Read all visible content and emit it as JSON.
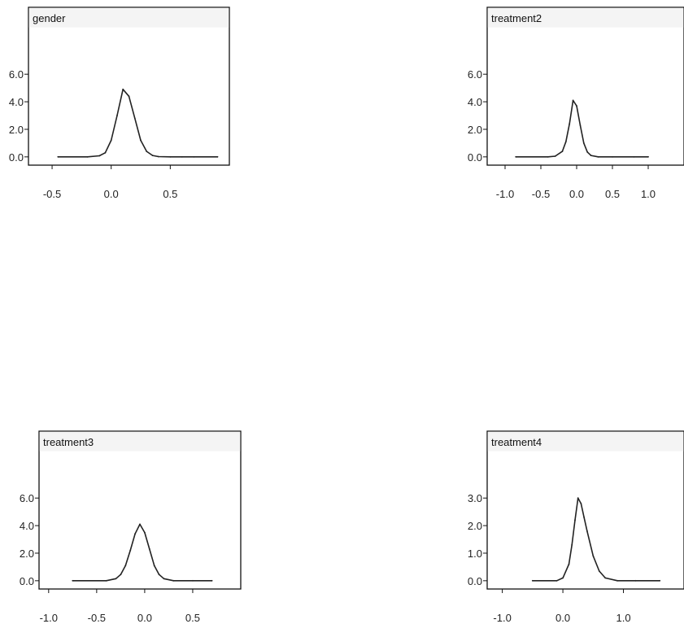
{
  "chart_data": [
    {
      "type": "line",
      "title": "gender",
      "xlabel": "",
      "ylabel": "",
      "xlim": [
        -0.7,
        1.0
      ],
      "ylim": [
        -0.6,
        9.2
      ],
      "xticks": [
        -0.5,
        0.0,
        0.5
      ],
      "xtick_labels": [
        "-0.5",
        "0.0",
        "0.5"
      ],
      "yticks": [
        0.0,
        2.0,
        4.0,
        6.0
      ],
      "ytick_labels": [
        "0.0",
        "2.0",
        "4.0",
        "6.0"
      ],
      "series": [
        {
          "x": [
            -0.45,
            -0.2,
            -0.1,
            -0.05,
            0.0,
            0.05,
            0.1,
            0.15,
            0.2,
            0.25,
            0.3,
            0.35,
            0.4,
            0.5,
            0.6,
            0.7,
            0.9
          ],
          "y": [
            0.0,
            0.0,
            0.08,
            0.3,
            1.2,
            3.0,
            4.9,
            4.4,
            2.8,
            1.2,
            0.4,
            0.1,
            0.02,
            0.0,
            0.0,
            0.0,
            0.0
          ]
        }
      ]
    },
    {
      "type": "line",
      "title": "treatment2",
      "xlabel": "",
      "ylabel": "",
      "xlim": [
        -1.25,
        1.5
      ],
      "ylim": [
        -0.6,
        9.2
      ],
      "xticks": [
        -1.0,
        -0.5,
        0.0,
        0.5,
        1.0
      ],
      "xtick_labels": [
        "-1.0",
        "-0.5",
        "0.0",
        "0.5",
        "1.0"
      ],
      "yticks": [
        0.0,
        2.0,
        4.0,
        6.0
      ],
      "ytick_labels": [
        "0.0",
        "2.0",
        "4.0",
        "6.0"
      ],
      "series": [
        {
          "x": [
            -0.85,
            -0.4,
            -0.3,
            -0.2,
            -0.15,
            -0.1,
            -0.05,
            0.0,
            0.05,
            0.1,
            0.15,
            0.2,
            0.3,
            0.5,
            0.8,
            1.0
          ],
          "y": [
            0.0,
            0.0,
            0.05,
            0.4,
            1.1,
            2.4,
            4.1,
            3.7,
            2.3,
            1.0,
            0.35,
            0.1,
            0.0,
            0.0,
            0.0,
            0.0
          ]
        }
      ]
    },
    {
      "type": "line",
      "title": "treatment3",
      "xlabel": "",
      "ylabel": "",
      "xlim": [
        -1.1,
        1.0
      ],
      "ylim": [
        -0.6,
        9.2
      ],
      "xticks": [
        -1.0,
        -0.5,
        0.0,
        0.5
      ],
      "xtick_labels": [
        "-1.0",
        "-0.5",
        "0.0",
        "0.5"
      ],
      "yticks": [
        0.0,
        2.0,
        4.0,
        6.0
      ],
      "ytick_labels": [
        "0.0",
        "2.0",
        "4.0",
        "6.0"
      ],
      "series": [
        {
          "x": [
            -0.75,
            -0.4,
            -0.3,
            -0.25,
            -0.2,
            -0.15,
            -0.1,
            -0.05,
            0.0,
            0.05,
            0.1,
            0.15,
            0.2,
            0.3,
            0.5,
            0.7
          ],
          "y": [
            0.0,
            0.0,
            0.15,
            0.45,
            1.1,
            2.2,
            3.4,
            4.1,
            3.5,
            2.3,
            1.1,
            0.45,
            0.15,
            0.0,
            0.0,
            0.0
          ]
        }
      ]
    },
    {
      "type": "line",
      "title": "treatment4",
      "xlabel": "",
      "ylabel": "",
      "xlim": [
        -1.25,
        2.0
      ],
      "ylim": [
        -0.3,
        4.6
      ],
      "xticks": [
        -1.0,
        0.0,
        1.0
      ],
      "xtick_labels": [
        "-1.0",
        "0.0",
        "1.0"
      ],
      "yticks": [
        0.0,
        1.0,
        2.0,
        3.0
      ],
      "ytick_labels": [
        "0.0",
        "1.0",
        "2.0",
        "3.0"
      ],
      "series": [
        {
          "x": [
            -0.5,
            -0.1,
            0.0,
            0.1,
            0.15,
            0.2,
            0.25,
            0.3,
            0.35,
            0.4,
            0.5,
            0.6,
            0.7,
            0.9,
            1.2,
            1.6
          ],
          "y": [
            0.0,
            0.0,
            0.1,
            0.6,
            1.3,
            2.2,
            3.0,
            2.8,
            2.3,
            1.8,
            0.9,
            0.35,
            0.1,
            0.0,
            0.0,
            0.0
          ]
        }
      ]
    }
  ],
  "colors": {
    "line": "#222222",
    "frame": "#111111",
    "title_box": "#f4f4f4"
  }
}
